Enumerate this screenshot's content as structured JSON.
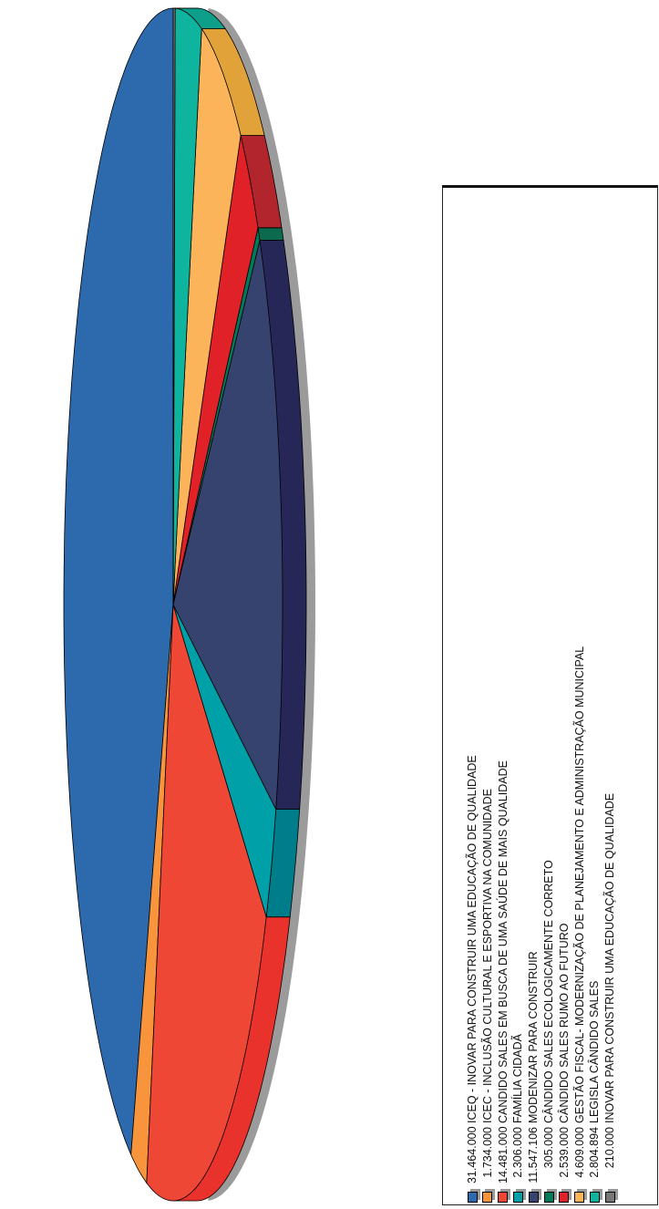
{
  "chart_data": {
    "type": "pie",
    "style": "3d-exploded-rotated",
    "legend_position": "right",
    "slices": [
      {
        "value_label": "31.464.000",
        "label": "ICEQ - INOVAR PARA CONSTRUIR UMA EDUCAÇÃO DE QUALIDADE",
        "value": 31464000,
        "color": "#2d69ad",
        "side": "#2d69ad"
      },
      {
        "value_label": "1.734.000",
        "label": "ICEC - INCLUSÃO CULTURAL E ESPORTIVA NA COMUNIDADE",
        "value": 1734000,
        "color": "#f7943c",
        "side": "#f7943c"
      },
      {
        "value_label": "14.481.000",
        "label": "CANDIDO SALES EM BUSCA DE UMA SAÚDE DE MAIS QUALIDADE",
        "value": 14481000,
        "color": "#ef4736",
        "side": "#e9322b"
      },
      {
        "value_label": "2.306.000",
        "label": "FAMÍLIA CIDADÃ",
        "value": 2306000,
        "color": "#00a0a8",
        "side": "#007d8a"
      },
      {
        "value_label": "11.547.106",
        "label": "MODENIZAR PARA CONSTRUIR",
        "value": 11547106,
        "color": "#36436f",
        "side": "#262757"
      },
      {
        "value_label": "305.000",
        "label": "CÂNDIDO SALES ECOLOGICAMENTE CORRETO",
        "value": 305000,
        "color": "#007a5a",
        "side": "#0c6a4f"
      },
      {
        "value_label": "2.539.000",
        "label": "CÂNDIDO SALES RUMO AO FUTURO",
        "value": 2539000,
        "color": "#e02128",
        "side": "#b2252d"
      },
      {
        "value_label": "4.609.000",
        "label": "GESTÃO FISCAL- MODERNIZAÇÃO DE PLANEJAMENTO E ADMINISTRAÇÃO MUNICIPAL",
        "value": 4609000,
        "color": "#fbb45a",
        "side": "#e2a23a"
      },
      {
        "value_label": "2.804.894",
        "label": "LEGISLA CÂNDIDO SALES",
        "value": 2804894,
        "color": "#0fb49e",
        "side": "#0d9f8a"
      },
      {
        "value_label": "210.000",
        "label": "INOVAR PARA CONSTRUIR UMA EDUCAÇÃO DE QUALIDADE",
        "value": 210000,
        "color": "#777777",
        "side": "#555555"
      }
    ]
  }
}
